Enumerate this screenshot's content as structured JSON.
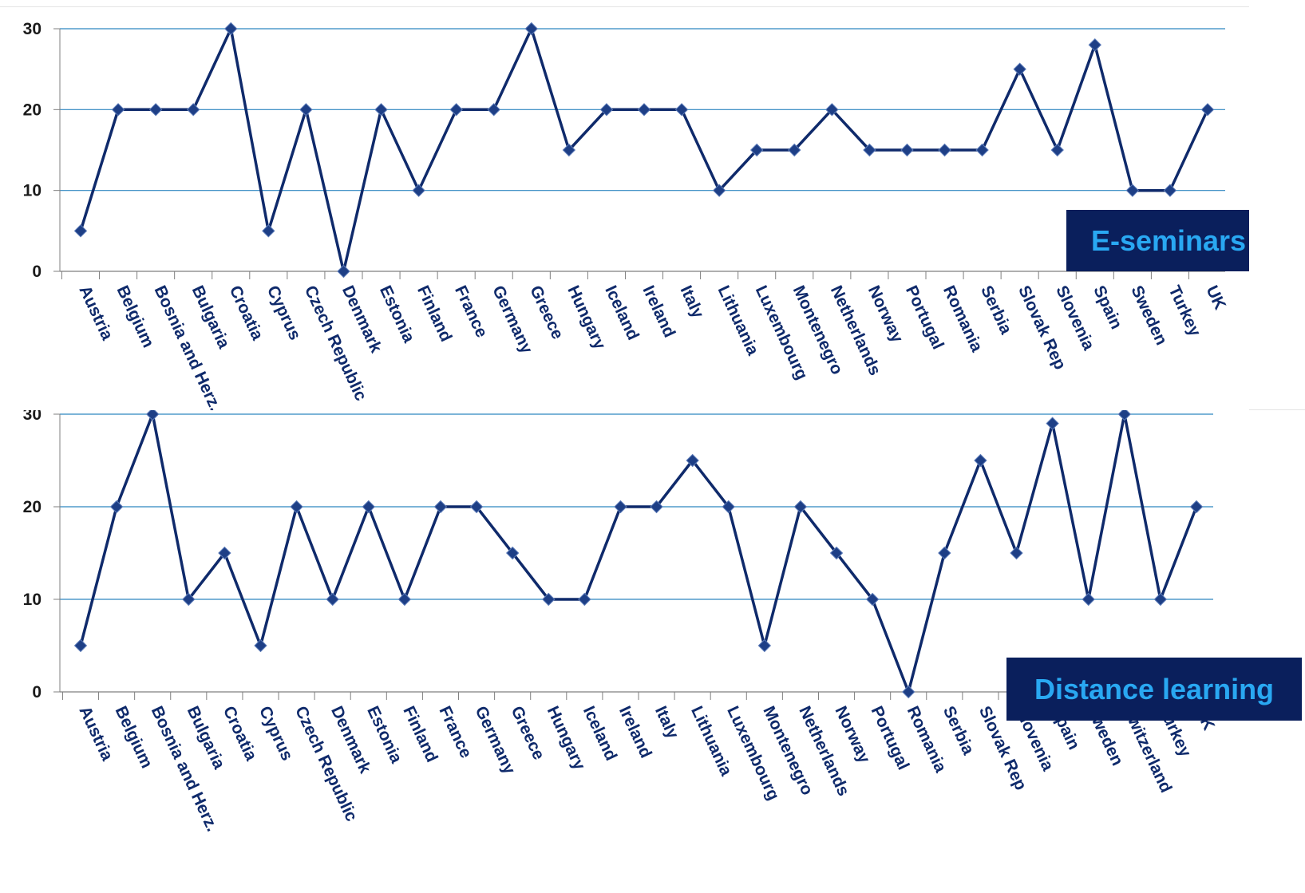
{
  "chart_data": [
    {
      "type": "line",
      "label": "E-seminars",
      "categories": [
        "Austria",
        "Belgium",
        "Bosnia and Herz.",
        "Bulgaria",
        "Croatia",
        "Cyprus",
        "Czech Republic",
        "Denmark",
        "Estonia",
        "Finland",
        "France",
        "Germany",
        "Greece",
        "Hungary",
        "Iceland",
        "Ireland",
        "Italy",
        "Lithuania",
        "Luxembourg",
        "Montenegro",
        "Netherlands",
        "Norway",
        "Portugal",
        "Romania",
        "Serbia",
        "Slovak Rep",
        "Slovenia",
        "Spain",
        "Sweden",
        "Turkey",
        "UK"
      ],
      "values": [
        5,
        20,
        20,
        20,
        30,
        5,
        20,
        0,
        20,
        10,
        20,
        20,
        30,
        15,
        20,
        20,
        20,
        10,
        15,
        15,
        20,
        15,
        15,
        15,
        15,
        25,
        15,
        28,
        10,
        10,
        20
      ],
      "ylim": [
        0,
        30
      ],
      "yticks": [
        0,
        10,
        20,
        30
      ],
      "grid": true,
      "colors": {
        "line": "#0f2a6b",
        "marker": "#1e3f86",
        "grid": "#2e86c1",
        "label_bg": "#0a1f5c",
        "label_text": "#29a8f2"
      }
    },
    {
      "type": "line",
      "label": "Distance learning",
      "categories": [
        "Austria",
        "Belgium",
        "Bosnia and Herz.",
        "Bulgaria",
        "Croatia",
        "Cyprus",
        "Czech Republic",
        "Denmark",
        "Estonia",
        "Finland",
        "France",
        "Germany",
        "Greece",
        "Hungary",
        "Iceland",
        "Ireland",
        "Italy",
        "Lithuania",
        "Luxembourg",
        "Montenegro",
        "Netherlands",
        "Norway",
        "Portugal",
        "Romania",
        "Serbia",
        "Slovak Rep",
        "Slovenia",
        "Spain",
        "Sweden",
        "Switzerland",
        "Turkey",
        "UK"
      ],
      "values": [
        5,
        20,
        30,
        10,
        15,
        5,
        20,
        10,
        20,
        10,
        20,
        20,
        15,
        10,
        10,
        20,
        20,
        25,
        20,
        5,
        20,
        15,
        10,
        0,
        15,
        25,
        15,
        29,
        10,
        30,
        10,
        20
      ],
      "ylim": [
        0,
        30
      ],
      "yticks": [
        0,
        10,
        20,
        30
      ],
      "grid": true,
      "colors": {
        "line": "#0f2a6b",
        "marker": "#1e3f86",
        "grid": "#2e86c1",
        "label_bg": "#0a1f5c",
        "label_text": "#29a8f2"
      }
    }
  ]
}
